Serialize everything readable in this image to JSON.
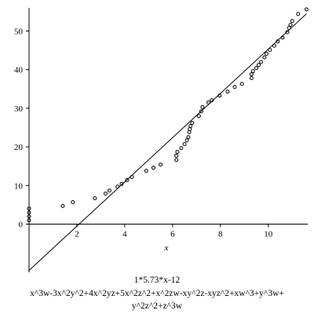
{
  "chart_data": {
    "type": "scatter",
    "title": "1*5.73*x-12",
    "caption": [
      "x^3w-3x^2y^2+4x^2yz+5x^2z^2+x^2zw-xy^2z-xyz^2+xw^3+y^3w+",
      "y^2z^2+z^3w"
    ],
    "x_label": "x",
    "xlim": [
      0,
      11.65
    ],
    "ylim": [
      -12.5,
      56
    ],
    "xticks": [
      2,
      4,
      6,
      8,
      10
    ],
    "yticks": [
      0,
      10,
      20,
      30,
      40,
      50
    ],
    "series": [
      {
        "color": "#000000",
        "marker": "circle",
        "x": [
          0,
          0,
          0,
          0,
          1.41,
          1.83,
          2.75,
          3.2,
          3.36,
          3.7,
          3.87,
          4.1,
          4.3,
          4.9,
          5.2,
          5.5,
          6.16,
          6.16,
          6.2,
          6.36,
          6.5,
          6.6,
          6.66,
          6.7,
          6.72,
          6.75,
          6.82,
          7.1,
          7.2,
          7.25,
          7.5,
          7.64,
          7.97,
          8.3,
          8.6,
          8.9,
          9.3,
          9.3,
          9.36,
          9.5,
          9.6,
          9.7,
          9.84,
          9.93,
          10.07,
          10.25,
          10.4,
          10.6,
          10.8,
          10.87,
          10.93,
          11,
          11.25,
          11.6
        ],
        "values": [
          1,
          2,
          3,
          4,
          4.7,
          5.7,
          6.7,
          7.9,
          8.7,
          9.7,
          10.4,
          11.4,
          12.2,
          13.8,
          14.6,
          15.4,
          16.6,
          17.7,
          18.7,
          19.7,
          20.7,
          21.7,
          22.5,
          23.8,
          24.6,
          25.4,
          26.2,
          28,
          29.2,
          30.3,
          31.5,
          32.1,
          33.3,
          34.3,
          35.5,
          36.3,
          37.8,
          38.8,
          39.6,
          40.4,
          41.2,
          42,
          43.2,
          44.1,
          45.1,
          46.2,
          47.3,
          48.3,
          49.7,
          50.8,
          51.6,
          52.6,
          54.4,
          55.6
        ]
      },
      {
        "color": "#000000",
        "style": "line",
        "x": [
          0,
          11.6
        ],
        "values": [
          -12,
          54.47
        ]
      }
    ]
  }
}
